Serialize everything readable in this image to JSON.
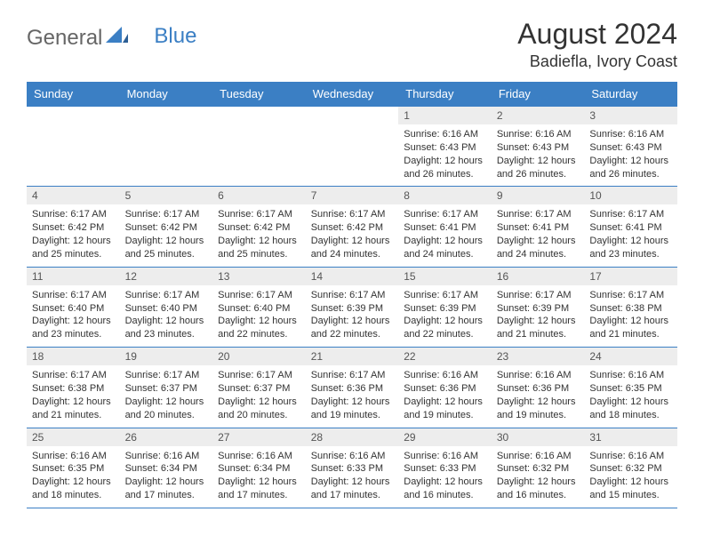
{
  "logo": {
    "part1": "General",
    "part2": "Blue"
  },
  "title": "August 2024",
  "location": "Badiefla, Ivory Coast",
  "colors": {
    "header_bg": "#3b7fc4",
    "header_text": "#ffffff",
    "daynum_bg": "#ededed",
    "border": "#3b7fc4",
    "text": "#333333"
  },
  "day_headers": [
    "Sunday",
    "Monday",
    "Tuesday",
    "Wednesday",
    "Thursday",
    "Friday",
    "Saturday"
  ],
  "weeks": [
    [
      {
        "n": "",
        "sr": "",
        "ss": "",
        "dl": ""
      },
      {
        "n": "",
        "sr": "",
        "ss": "",
        "dl": ""
      },
      {
        "n": "",
        "sr": "",
        "ss": "",
        "dl": ""
      },
      {
        "n": "",
        "sr": "",
        "ss": "",
        "dl": ""
      },
      {
        "n": "1",
        "sr": "Sunrise: 6:16 AM",
        "ss": "Sunset: 6:43 PM",
        "dl": "Daylight: 12 hours and 26 minutes."
      },
      {
        "n": "2",
        "sr": "Sunrise: 6:16 AM",
        "ss": "Sunset: 6:43 PM",
        "dl": "Daylight: 12 hours and 26 minutes."
      },
      {
        "n": "3",
        "sr": "Sunrise: 6:16 AM",
        "ss": "Sunset: 6:43 PM",
        "dl": "Daylight: 12 hours and 26 minutes."
      }
    ],
    [
      {
        "n": "4",
        "sr": "Sunrise: 6:17 AM",
        "ss": "Sunset: 6:42 PM",
        "dl": "Daylight: 12 hours and 25 minutes."
      },
      {
        "n": "5",
        "sr": "Sunrise: 6:17 AM",
        "ss": "Sunset: 6:42 PM",
        "dl": "Daylight: 12 hours and 25 minutes."
      },
      {
        "n": "6",
        "sr": "Sunrise: 6:17 AM",
        "ss": "Sunset: 6:42 PM",
        "dl": "Daylight: 12 hours and 25 minutes."
      },
      {
        "n": "7",
        "sr": "Sunrise: 6:17 AM",
        "ss": "Sunset: 6:42 PM",
        "dl": "Daylight: 12 hours and 24 minutes."
      },
      {
        "n": "8",
        "sr": "Sunrise: 6:17 AM",
        "ss": "Sunset: 6:41 PM",
        "dl": "Daylight: 12 hours and 24 minutes."
      },
      {
        "n": "9",
        "sr": "Sunrise: 6:17 AM",
        "ss": "Sunset: 6:41 PM",
        "dl": "Daylight: 12 hours and 24 minutes."
      },
      {
        "n": "10",
        "sr": "Sunrise: 6:17 AM",
        "ss": "Sunset: 6:41 PM",
        "dl": "Daylight: 12 hours and 23 minutes."
      }
    ],
    [
      {
        "n": "11",
        "sr": "Sunrise: 6:17 AM",
        "ss": "Sunset: 6:40 PM",
        "dl": "Daylight: 12 hours and 23 minutes."
      },
      {
        "n": "12",
        "sr": "Sunrise: 6:17 AM",
        "ss": "Sunset: 6:40 PM",
        "dl": "Daylight: 12 hours and 23 minutes."
      },
      {
        "n": "13",
        "sr": "Sunrise: 6:17 AM",
        "ss": "Sunset: 6:40 PM",
        "dl": "Daylight: 12 hours and 22 minutes."
      },
      {
        "n": "14",
        "sr": "Sunrise: 6:17 AM",
        "ss": "Sunset: 6:39 PM",
        "dl": "Daylight: 12 hours and 22 minutes."
      },
      {
        "n": "15",
        "sr": "Sunrise: 6:17 AM",
        "ss": "Sunset: 6:39 PM",
        "dl": "Daylight: 12 hours and 22 minutes."
      },
      {
        "n": "16",
        "sr": "Sunrise: 6:17 AM",
        "ss": "Sunset: 6:39 PM",
        "dl": "Daylight: 12 hours and 21 minutes."
      },
      {
        "n": "17",
        "sr": "Sunrise: 6:17 AM",
        "ss": "Sunset: 6:38 PM",
        "dl": "Daylight: 12 hours and 21 minutes."
      }
    ],
    [
      {
        "n": "18",
        "sr": "Sunrise: 6:17 AM",
        "ss": "Sunset: 6:38 PM",
        "dl": "Daylight: 12 hours and 21 minutes."
      },
      {
        "n": "19",
        "sr": "Sunrise: 6:17 AM",
        "ss": "Sunset: 6:37 PM",
        "dl": "Daylight: 12 hours and 20 minutes."
      },
      {
        "n": "20",
        "sr": "Sunrise: 6:17 AM",
        "ss": "Sunset: 6:37 PM",
        "dl": "Daylight: 12 hours and 20 minutes."
      },
      {
        "n": "21",
        "sr": "Sunrise: 6:17 AM",
        "ss": "Sunset: 6:36 PM",
        "dl": "Daylight: 12 hours and 19 minutes."
      },
      {
        "n": "22",
        "sr": "Sunrise: 6:16 AM",
        "ss": "Sunset: 6:36 PM",
        "dl": "Daylight: 12 hours and 19 minutes."
      },
      {
        "n": "23",
        "sr": "Sunrise: 6:16 AM",
        "ss": "Sunset: 6:36 PM",
        "dl": "Daylight: 12 hours and 19 minutes."
      },
      {
        "n": "24",
        "sr": "Sunrise: 6:16 AM",
        "ss": "Sunset: 6:35 PM",
        "dl": "Daylight: 12 hours and 18 minutes."
      }
    ],
    [
      {
        "n": "25",
        "sr": "Sunrise: 6:16 AM",
        "ss": "Sunset: 6:35 PM",
        "dl": "Daylight: 12 hours and 18 minutes."
      },
      {
        "n": "26",
        "sr": "Sunrise: 6:16 AM",
        "ss": "Sunset: 6:34 PM",
        "dl": "Daylight: 12 hours and 17 minutes."
      },
      {
        "n": "27",
        "sr": "Sunrise: 6:16 AM",
        "ss": "Sunset: 6:34 PM",
        "dl": "Daylight: 12 hours and 17 minutes."
      },
      {
        "n": "28",
        "sr": "Sunrise: 6:16 AM",
        "ss": "Sunset: 6:33 PM",
        "dl": "Daylight: 12 hours and 17 minutes."
      },
      {
        "n": "29",
        "sr": "Sunrise: 6:16 AM",
        "ss": "Sunset: 6:33 PM",
        "dl": "Daylight: 12 hours and 16 minutes."
      },
      {
        "n": "30",
        "sr": "Sunrise: 6:16 AM",
        "ss": "Sunset: 6:32 PM",
        "dl": "Daylight: 12 hours and 16 minutes."
      },
      {
        "n": "31",
        "sr": "Sunrise: 6:16 AM",
        "ss": "Sunset: 6:32 PM",
        "dl": "Daylight: 12 hours and 15 minutes."
      }
    ]
  ]
}
